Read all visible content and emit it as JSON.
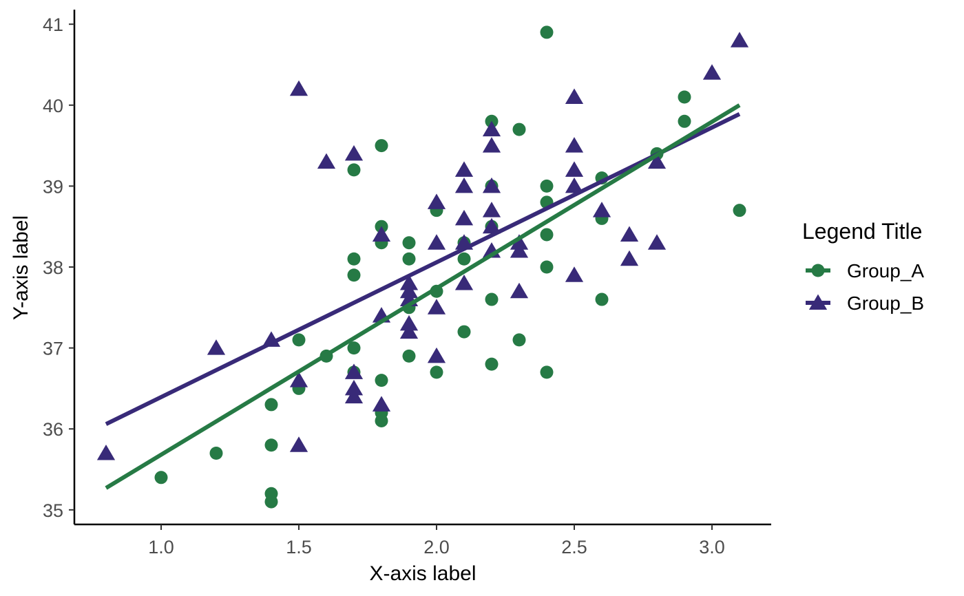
{
  "chart_data": {
    "type": "scatter",
    "xlabel": "X-axis label",
    "ylabel": "Y-axis label",
    "xlim": [
      0.8,
      3.1
    ],
    "ylim": [
      35,
      41
    ],
    "x_ticks": [
      "1.0",
      "1.5",
      "2.0",
      "2.5",
      "3.0"
    ],
    "y_ticks": [
      "35",
      "36",
      "37",
      "38",
      "39",
      "40",
      "41"
    ],
    "grid": false,
    "legend": {
      "title": "Legend Title",
      "position": "right"
    },
    "series": [
      {
        "name": "Group_A",
        "marker": "circle",
        "color": "#267a45",
        "trendline": [
          [
            0.8,
            35.27
          ],
          [
            3.1,
            40.0
          ]
        ],
        "points": [
          [
            1.0,
            35.4
          ],
          [
            1.2,
            35.7
          ],
          [
            1.4,
            36.3
          ],
          [
            1.4,
            35.8
          ],
          [
            1.4,
            35.2
          ],
          [
            1.4,
            35.1
          ],
          [
            1.5,
            37.1
          ],
          [
            1.5,
            36.5
          ],
          [
            1.6,
            36.9
          ],
          [
            1.7,
            39.2
          ],
          [
            1.7,
            38.1
          ],
          [
            1.7,
            37.9
          ],
          [
            1.7,
            37.0
          ],
          [
            1.7,
            36.7
          ],
          [
            1.8,
            39.5
          ],
          [
            1.8,
            38.5
          ],
          [
            1.8,
            38.3
          ],
          [
            1.8,
            36.6
          ],
          [
            1.8,
            36.2
          ],
          [
            1.8,
            36.1
          ],
          [
            1.9,
            38.3
          ],
          [
            1.9,
            38.1
          ],
          [
            1.9,
            37.5
          ],
          [
            1.9,
            36.9
          ],
          [
            2.0,
            38.7
          ],
          [
            2.0,
            37.7
          ],
          [
            2.0,
            36.7
          ],
          [
            2.1,
            38.3
          ],
          [
            2.1,
            38.1
          ],
          [
            2.1,
            37.2
          ],
          [
            2.2,
            39.8
          ],
          [
            2.2,
            39.0
          ],
          [
            2.2,
            38.5
          ],
          [
            2.2,
            37.6
          ],
          [
            2.2,
            36.8
          ],
          [
            2.3,
            39.7
          ],
          [
            2.3,
            37.1
          ],
          [
            2.4,
            40.9
          ],
          [
            2.4,
            39.0
          ],
          [
            2.4,
            38.8
          ],
          [
            2.4,
            38.4
          ],
          [
            2.4,
            38.0
          ],
          [
            2.4,
            36.7
          ],
          [
            2.6,
            39.1
          ],
          [
            2.6,
            38.6
          ],
          [
            2.6,
            37.6
          ],
          [
            2.8,
            39.4
          ],
          [
            2.9,
            40.1
          ],
          [
            2.9,
            39.8
          ],
          [
            3.1,
            38.7
          ]
        ]
      },
      {
        "name": "Group_B",
        "marker": "triangle",
        "color": "#382a78",
        "trendline": [
          [
            0.8,
            36.06
          ],
          [
            3.1,
            39.89
          ]
        ],
        "points": [
          [
            0.8,
            35.7
          ],
          [
            1.2,
            37.0
          ],
          [
            1.4,
            37.1
          ],
          [
            1.5,
            40.2
          ],
          [
            1.5,
            36.6
          ],
          [
            1.5,
            35.8
          ],
          [
            1.6,
            39.3
          ],
          [
            1.7,
            39.4
          ],
          [
            1.7,
            36.7
          ],
          [
            1.7,
            36.5
          ],
          [
            1.7,
            36.4
          ],
          [
            1.8,
            38.4
          ],
          [
            1.8,
            37.4
          ],
          [
            1.8,
            36.3
          ],
          [
            1.9,
            37.8
          ],
          [
            1.9,
            37.7
          ],
          [
            1.9,
            37.6
          ],
          [
            1.9,
            37.3
          ],
          [
            1.9,
            37.2
          ],
          [
            2.0,
            38.8
          ],
          [
            2.0,
            38.3
          ],
          [
            2.0,
            37.5
          ],
          [
            2.0,
            36.9
          ],
          [
            2.1,
            39.2
          ],
          [
            2.1,
            39.0
          ],
          [
            2.1,
            38.6
          ],
          [
            2.1,
            38.3
          ],
          [
            2.1,
            37.8
          ],
          [
            2.2,
            39.7
          ],
          [
            2.2,
            39.5
          ],
          [
            2.2,
            39.0
          ],
          [
            2.2,
            38.7
          ],
          [
            2.2,
            38.5
          ],
          [
            2.2,
            38.2
          ],
          [
            2.3,
            38.3
          ],
          [
            2.3,
            38.2
          ],
          [
            2.3,
            37.7
          ],
          [
            2.5,
            40.1
          ],
          [
            2.5,
            39.5
          ],
          [
            2.5,
            39.2
          ],
          [
            2.5,
            39.0
          ],
          [
            2.5,
            37.9
          ],
          [
            2.6,
            38.7
          ],
          [
            2.7,
            38.4
          ],
          [
            2.7,
            38.1
          ],
          [
            2.8,
            39.3
          ],
          [
            2.8,
            38.3
          ],
          [
            3.0,
            40.4
          ],
          [
            3.1,
            40.8
          ]
        ]
      }
    ]
  }
}
